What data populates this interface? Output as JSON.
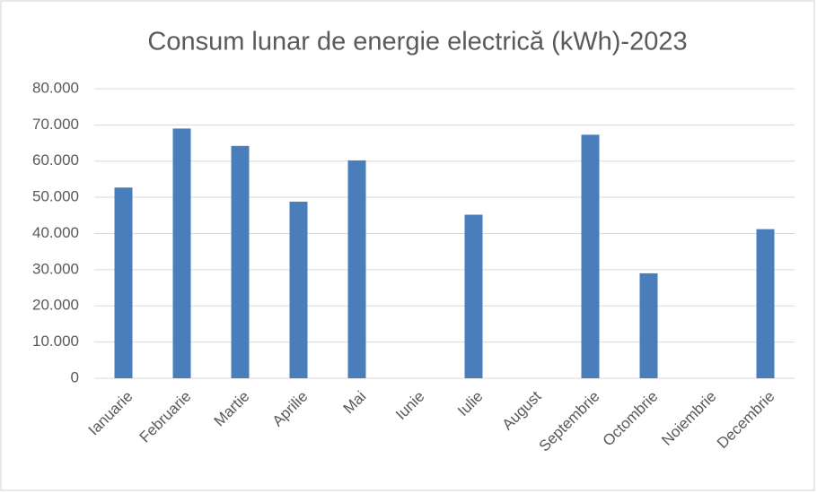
{
  "chart_data": {
    "type": "bar",
    "title": "Consum lunar de energie electrică (kWh)-2023",
    "categories": [
      "Ianuarie",
      "Februarie",
      "Martie",
      "Aprilie",
      "Mai",
      "Iunie",
      "Iulie",
      "August",
      "Septembrie",
      "Octombrie",
      "Noiembrie",
      "Decembrie"
    ],
    "values": [
      52700,
      69000,
      64200,
      48800,
      60200,
      null,
      45200,
      null,
      67300,
      29000,
      null,
      41200
    ],
    "color": "#4a7ebb",
    "ylim": [
      0,
      80000
    ],
    "yticks": [
      0,
      {
        "value": 10000,
        "label": "10.000"
      },
      {
        "value": 20000,
        "label": "20.000"
      },
      {
        "value": 30000,
        "label": "30.000"
      },
      {
        "value": 40000,
        "label": "40.000"
      },
      {
        "value": 50000,
        "label": "50.000"
      },
      {
        "value": 60000,
        "label": "60.000"
      },
      {
        "value": 70000,
        "label": "70.000"
      },
      {
        "value": 80000,
        "label": "80.000"
      }
    ],
    "grid": true
  }
}
